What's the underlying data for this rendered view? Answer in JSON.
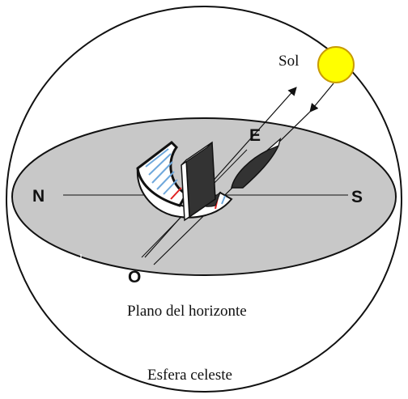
{
  "labels": {
    "sun": "Sol",
    "north": "N",
    "south": "S",
    "east": "E",
    "west": "O",
    "horizon_plane": "Plano del horizonte",
    "celestial_sphere": "Esfera celeste"
  },
  "colors": {
    "horizon_fill": "#c8c8c8",
    "sun_fill": "#ffff00",
    "sun_stroke": "#c89b00",
    "collector_stripe_blue": "#6fa8dc",
    "collector_stripe_red": "#e02020",
    "receiver_fill": "#333333"
  }
}
